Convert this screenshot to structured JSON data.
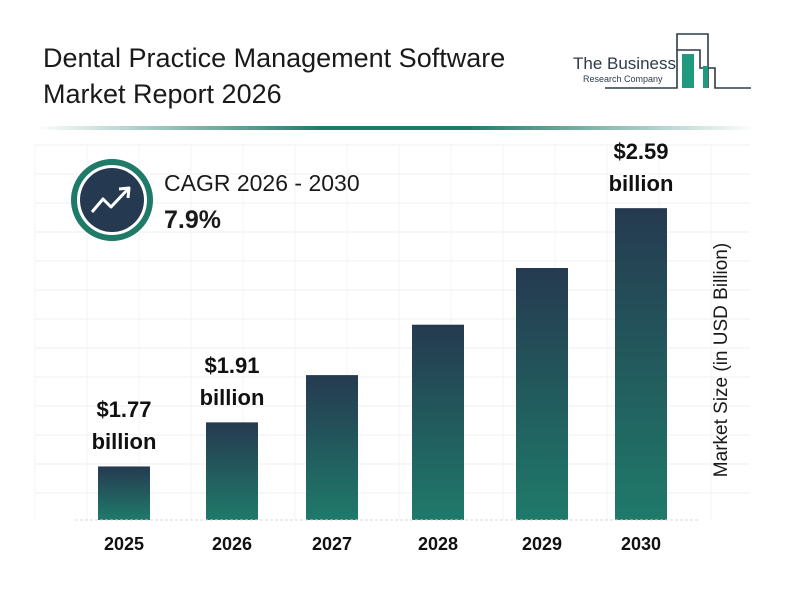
{
  "header": {
    "title_line1": "Dental Practice Management Software",
    "title_line2": "Market Report 2026",
    "logo_text_line1": "The Business",
    "logo_text_line2": "Research Company"
  },
  "cagr": {
    "label": "CAGR 2026 - 2030",
    "value": "7.9%",
    "icon": "trending-up-icon"
  },
  "colors": {
    "bar_top": "#253a50",
    "bar_bottom": "#1f7a6a",
    "accent": "#1f7a6a",
    "icon_bg": "#253a50"
  },
  "chart_data": {
    "type": "bar",
    "title": "Dental Practice Management Software Market Report 2026",
    "xlabel": "",
    "ylabel": "Market Size (in USD Billion)",
    "categories": [
      "2025",
      "2026",
      "2027",
      "2028",
      "2029",
      "2030"
    ],
    "values": [
      1.77,
      1.91,
      2.06,
      2.22,
      2.4,
      2.59
    ],
    "data_labels": [
      {
        "index": 0,
        "line1": "$1.77",
        "line2": "billion"
      },
      {
        "index": 1,
        "line1": "$1.91",
        "line2": "billion"
      },
      {
        "index": 5,
        "line1": "$2.59",
        "line2": "billion"
      }
    ],
    "ylim": [
      1.6,
      2.6
    ],
    "grid": true,
    "legend": "none"
  }
}
